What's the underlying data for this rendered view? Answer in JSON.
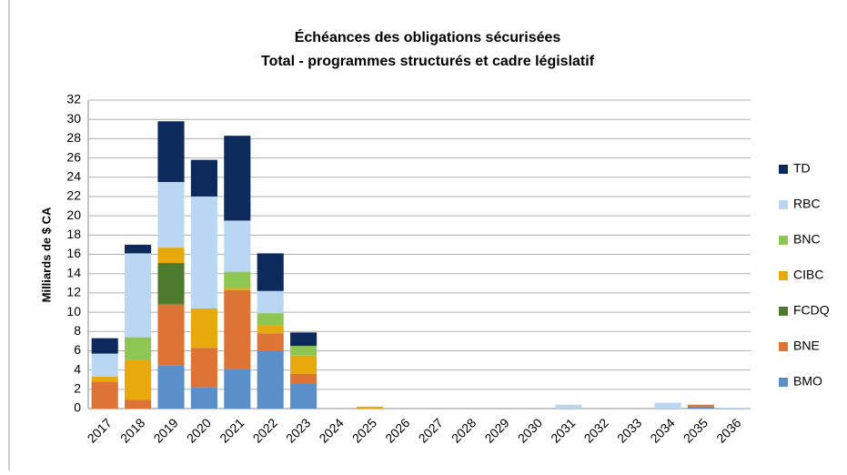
{
  "chart_data": {
    "type": "stacked_bar",
    "title": "Échéances des obligations sécurisées",
    "subtitle": "Total - programmes structurés et cadre législatif",
    "y_label": "Milliards de $ CA",
    "categories": [
      "2017",
      "2018",
      "2019",
      "2020",
      "2021",
      "2022",
      "2023",
      "2024",
      "2025",
      "2026",
      "2027",
      "2028",
      "2029",
      "2030",
      "2031",
      "2032",
      "2033",
      "2034",
      "2035",
      "2036"
    ],
    "series": [
      {
        "name": "BMO",
        "color": "#5b8fc9",
        "values": [
          0,
          0,
          4.5,
          2.2,
          4.1,
          6.0,
          2.6,
          0,
          0,
          0,
          0,
          0,
          0,
          0,
          0,
          0,
          0,
          0,
          0.2,
          0
        ]
      },
      {
        "name": "BNE",
        "color": "#dd7335",
        "values": [
          2.8,
          0.9,
          6.3,
          4.1,
          8.2,
          1.8,
          1.0,
          0,
          0,
          0,
          0,
          0,
          0,
          0,
          0,
          0,
          0,
          0,
          0.2,
          0
        ]
      },
      {
        "name": "FCDQ",
        "color": "#4e7a2e",
        "values": [
          0,
          0,
          4.3,
          0,
          0,
          0,
          0,
          0,
          0,
          0,
          0,
          0,
          0,
          0,
          0,
          0,
          0,
          0,
          0,
          0
        ]
      },
      {
        "name": "CIBC",
        "color": "#e8a90c",
        "values": [
          0.5,
          4.2,
          1.6,
          4.1,
          0.2,
          0.8,
          1.9,
          0,
          0.2,
          0,
          0,
          0,
          0,
          0,
          0,
          0,
          0,
          0,
          0,
          0
        ]
      },
      {
        "name": "BNC",
        "color": "#8dc652",
        "values": [
          0,
          2.3,
          0,
          0,
          1.7,
          1.3,
          1.0,
          0,
          0,
          0,
          0,
          0,
          0,
          0,
          0,
          0,
          0,
          0,
          0,
          0
        ]
      },
      {
        "name": "RBC",
        "color": "#b9d7f2",
        "values": [
          2.4,
          8.7,
          6.8,
          11.6,
          5.3,
          2.3,
          0,
          0,
          0,
          0,
          0,
          0,
          0,
          0,
          0.4,
          0,
          0,
          0.6,
          0,
          0.1
        ]
      },
      {
        "name": "TD",
        "color": "#0d2a5c",
        "values": [
          1.6,
          0.9,
          6.3,
          3.8,
          8.8,
          3.9,
          1.4,
          0,
          0,
          0,
          0,
          0,
          0,
          0,
          0,
          0,
          0,
          0,
          0,
          0
        ]
      }
    ],
    "ylim": [
      0,
      32
    ],
    "yticks": [
      0,
      2,
      4,
      6,
      8,
      10,
      12,
      14,
      16,
      18,
      20,
      22,
      24,
      26,
      28,
      30,
      32
    ],
    "grid": true,
    "legend": "right"
  }
}
